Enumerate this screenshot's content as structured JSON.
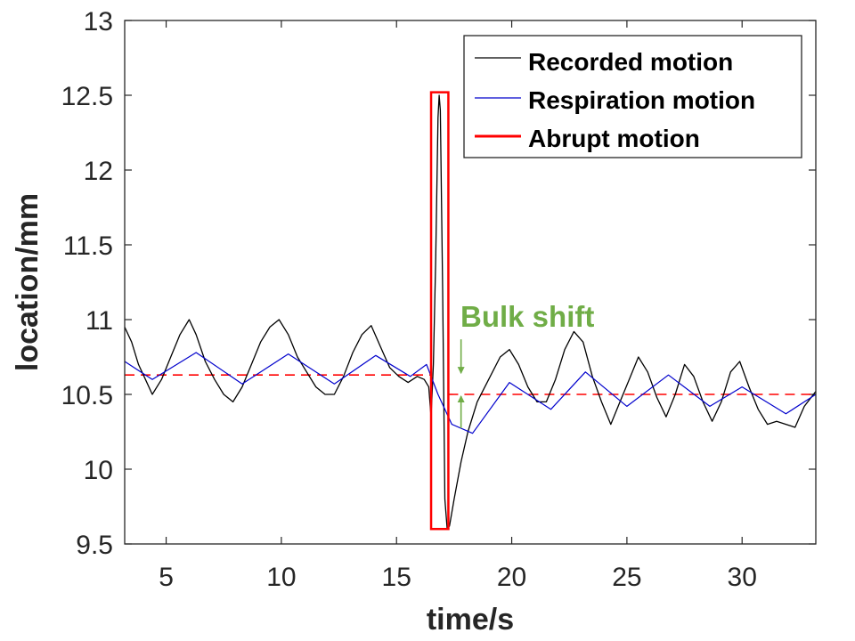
{
  "chart_data": {
    "type": "line",
    "xlabel": "time/s",
    "ylabel": "location/mm",
    "xlim": [
      3.2,
      33.2
    ],
    "ylim": [
      9.5,
      13
    ],
    "xticks": [
      5,
      10,
      15,
      20,
      25,
      30
    ],
    "xtick_labels": [
      "5",
      "10",
      "15",
      "20",
      "25",
      "30"
    ],
    "yticks": [
      9.5,
      10,
      10.5,
      11,
      11.5,
      12,
      12.5,
      13
    ],
    "ytick_labels": [
      "9.5",
      "10",
      "10.5",
      "11",
      "11.5",
      "12",
      "12.5",
      "13"
    ],
    "grid": false,
    "legend_position": "top-right",
    "series": [
      {
        "name": "Recorded motion",
        "color": "#000000",
        "x": [
          3.2,
          3.5,
          3.8,
          4.1,
          4.4,
          4.8,
          5.2,
          5.6,
          6.0,
          6.3,
          6.7,
          7.1,
          7.5,
          7.9,
          8.3,
          8.7,
          9.1,
          9.5,
          9.9,
          10.3,
          10.7,
          11.1,
          11.5,
          11.9,
          12.3,
          12.7,
          13.1,
          13.5,
          13.9,
          14.3,
          14.7,
          15.1,
          15.5,
          15.9,
          16.2,
          16.4,
          16.5,
          16.6,
          16.7,
          16.8,
          16.85,
          16.9,
          17.0,
          17.1,
          17.2,
          17.3,
          17.5,
          17.8,
          18.1,
          18.5,
          19.0,
          19.5,
          19.9,
          20.3,
          20.7,
          21.1,
          21.5,
          21.9,
          22.3,
          22.7,
          23.1,
          23.5,
          23.9,
          24.3,
          24.7,
          25.1,
          25.5,
          25.9,
          26.3,
          26.7,
          27.1,
          27.5,
          27.9,
          28.3,
          28.7,
          29.1,
          29.5,
          29.9,
          30.3,
          30.7,
          31.1,
          31.5,
          31.9,
          32.3,
          32.7,
          33.2
        ],
        "y": [
          10.95,
          10.85,
          10.7,
          10.6,
          10.5,
          10.6,
          10.75,
          10.9,
          11.0,
          10.9,
          10.72,
          10.6,
          10.5,
          10.45,
          10.55,
          10.7,
          10.85,
          10.95,
          11.0,
          10.9,
          10.75,
          10.65,
          10.55,
          10.5,
          10.5,
          10.62,
          10.78,
          10.9,
          10.96,
          10.82,
          10.68,
          10.62,
          10.58,
          10.62,
          10.6,
          10.55,
          10.35,
          10.7,
          11.4,
          12.35,
          12.5,
          12.4,
          11.2,
          9.8,
          9.6,
          9.62,
          9.8,
          10.05,
          10.25,
          10.45,
          10.6,
          10.75,
          10.8,
          10.7,
          10.55,
          10.45,
          10.45,
          10.6,
          10.8,
          10.92,
          10.85,
          10.62,
          10.45,
          10.3,
          10.45,
          10.6,
          10.75,
          10.65,
          10.48,
          10.35,
          10.5,
          10.7,
          10.62,
          10.45,
          10.32,
          10.45,
          10.65,
          10.72,
          10.55,
          10.4,
          10.3,
          10.32,
          10.3,
          10.28,
          10.42,
          10.52
        ]
      },
      {
        "name": "Respiration motion",
        "color": "#0000cc",
        "x": [
          3.2,
          4.4,
          6.3,
          8.3,
          10.3,
          12.3,
          14.1,
          15.6,
          16.3,
          16.8,
          17.4,
          18.3,
          19.9,
          21.7,
          23.2,
          25.0,
          26.8,
          28.6,
          30.0,
          31.9,
          33.2
        ],
        "y": [
          10.72,
          10.6,
          10.78,
          10.57,
          10.77,
          10.57,
          10.76,
          10.62,
          10.7,
          10.5,
          10.3,
          10.24,
          10.58,
          10.4,
          10.65,
          10.42,
          10.63,
          10.42,
          10.55,
          10.37,
          10.5
        ]
      }
    ],
    "abrupt_motion": {
      "name": "Abrupt motion",
      "color": "#ff0000",
      "x_range": [
        16.5,
        17.25
      ],
      "y_range": [
        9.6,
        12.52
      ]
    },
    "baselines": [
      {
        "color": "#ff0000",
        "x_range": [
          3.2,
          16.5
        ],
        "y": 10.63
      },
      {
        "color": "#ff0000",
        "x_range": [
          17.25,
          33.2
        ],
        "y": 10.5
      }
    ],
    "annotations": [
      {
        "text": "Bulk shift",
        "color": "#70ad47",
        "x": 17.8,
        "y_from": 10.63,
        "y_to": 10.5
      }
    ]
  }
}
